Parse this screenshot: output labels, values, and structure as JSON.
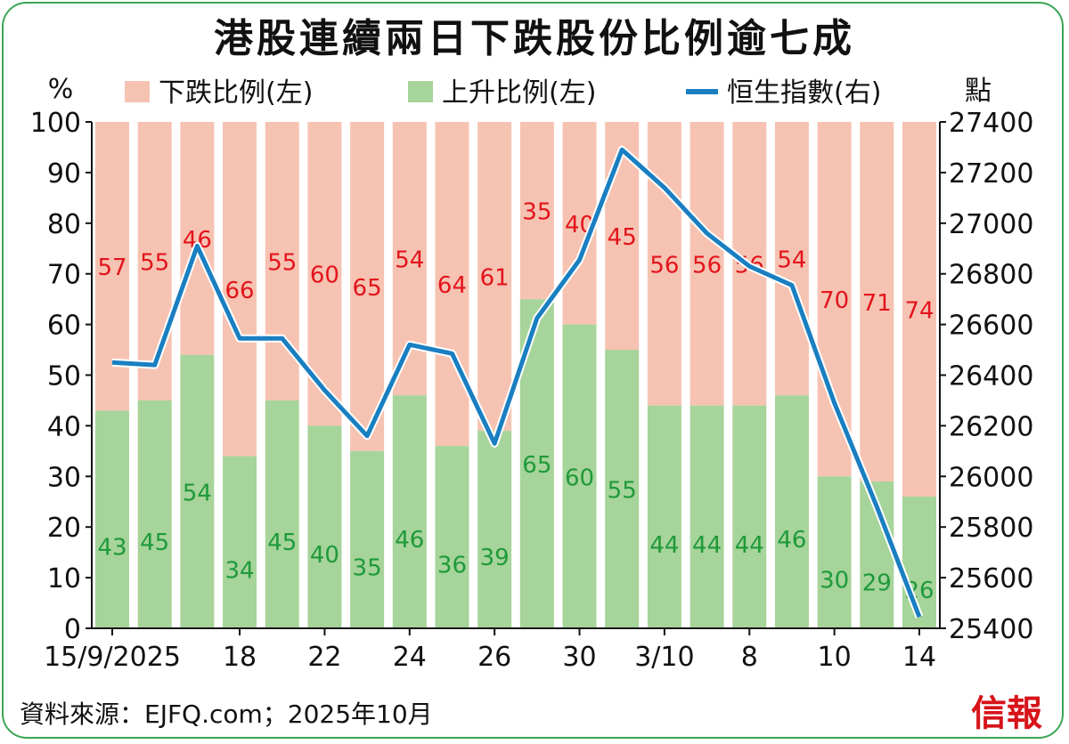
{
  "chart_data": {
    "type": "bar",
    "title": "港股連續兩日下跌股份比例逾七成",
    "left_unit": "%",
    "right_unit": "點",
    "legend": [
      "下跌比例(左)",
      "上升比例(左)",
      "恒生指數(右)"
    ],
    "colors": {
      "decline": "#f6c3b2",
      "advance": "#a6d49a",
      "index": "#1a7fc1",
      "decline_label": "#e3141c",
      "advance_label": "#1f9a3a",
      "frame": "#3aa655",
      "logo": "#d7141a"
    },
    "x_tick_labels": [
      "15/9/2025",
      "",
      "",
      "18",
      "",
      "22",
      "",
      "24",
      "",
      "26",
      "",
      "30",
      "",
      "3/10",
      "",
      "8",
      "",
      "10",
      "",
      "14"
    ],
    "series": [
      {
        "name": "上升比例(左)",
        "values": [
          43,
          45,
          54,
          34,
          45,
          40,
          35,
          46,
          36,
          39,
          65,
          60,
          55,
          44,
          44,
          44,
          46,
          30,
          29,
          26
        ]
      },
      {
        "name": "下跌比例(左)",
        "values": [
          57,
          55,
          46,
          66,
          55,
          60,
          65,
          54,
          64,
          61,
          35,
          40,
          45,
          56,
          56,
          56,
          54,
          70,
          71,
          74
        ]
      },
      {
        "name": "恒生指數(右)",
        "values": [
          26450,
          26440,
          26910,
          26545,
          26545,
          26340,
          26160,
          26520,
          26485,
          26130,
          26625,
          26855,
          27290,
          27140,
          26960,
          26830,
          26755,
          26290,
          25880,
          25445
        ]
      }
    ],
    "ylim_left": [
      0,
      100
    ],
    "yticks_left": [
      0,
      10,
      20,
      30,
      40,
      50,
      60,
      70,
      80,
      90,
      100
    ],
    "ylim_right": [
      25400,
      27400
    ],
    "yticks_right": [
      25400,
      25600,
      25800,
      26000,
      26200,
      26400,
      26600,
      26800,
      27000,
      27200,
      27400
    ]
  },
  "source": "資料來源：EJFQ.com；2025年10月",
  "logo": "信報"
}
